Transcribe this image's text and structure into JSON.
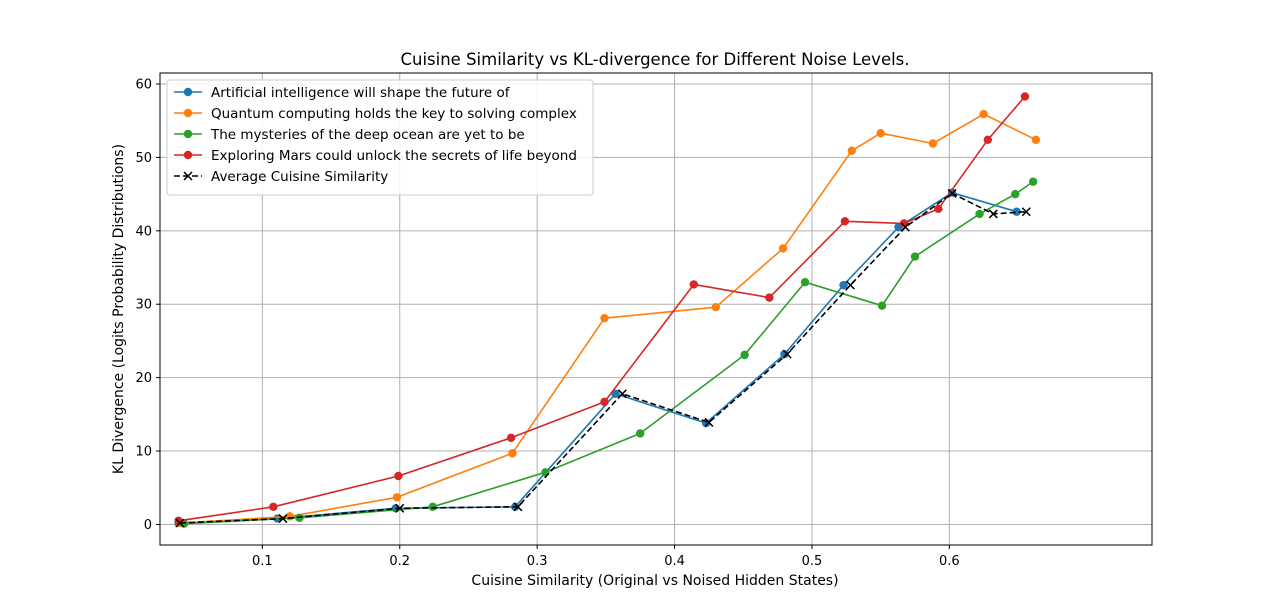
{
  "chart_data": {
    "type": "line",
    "title": "Cuisine Similarity vs KL-divergence for Different Noise Levels.",
    "xlabel": "Cuisine Similarity (Original vs Noised Hidden States)",
    "ylabel": "KL Divergence (Logits Probability Distributions)",
    "xlim": [
      0.0255,
      0.7475
    ],
    "ylim": [
      -2.8,
      61.5
    ],
    "xticks": [
      0.1,
      0.2,
      0.3,
      0.4,
      0.5,
      0.6
    ],
    "xtick_labels": [
      "0.1",
      "0.2",
      "0.3",
      "0.4",
      "0.5",
      "0.6"
    ],
    "yticks": [
      0,
      10,
      20,
      30,
      40,
      50,
      60
    ],
    "ytick_labels": [
      "0",
      "10",
      "20",
      "30",
      "40",
      "50",
      "60"
    ],
    "grid": true,
    "legend_position": "top-left",
    "series": [
      {
        "name": "Artificial intelligence will shape the future of",
        "color": "#1f77b4",
        "marker": "circle",
        "dashed": false,
        "x": [
          0.039,
          0.111,
          0.197,
          0.284,
          0.357,
          0.423,
          0.48,
          0.523,
          0.563,
          0.602,
          0.649
        ],
        "y": [
          0.2,
          0.8,
          2.2,
          2.4,
          17.8,
          13.8,
          23.2,
          32.6,
          40.5,
          45.2,
          42.6
        ]
      },
      {
        "name": "Quantum computing holds the key to solving complex",
        "color": "#ff7f0e",
        "marker": "circle",
        "dashed": false,
        "x": [
          0.04,
          0.12,
          0.198,
          0.282,
          0.349,
          0.43,
          0.479,
          0.529,
          0.55,
          0.588,
          0.625,
          0.663
        ],
        "y": [
          0.2,
          1.1,
          3.7,
          9.7,
          28.1,
          29.6,
          37.6,
          50.9,
          53.3,
          51.9,
          55.9,
          52.4
        ]
      },
      {
        "name": "The mysteries of the deep ocean are yet to be",
        "color": "#2ca02c",
        "marker": "circle",
        "dashed": false,
        "x": [
          0.043,
          0.127,
          0.224,
          0.306,
          0.375,
          0.451,
          0.495,
          0.551,
          0.575,
          0.622,
          0.648,
          0.661
        ],
        "y": [
          0.1,
          0.9,
          2.4,
          7.1,
          12.4,
          23.1,
          33.0,
          29.8,
          36.5,
          42.3,
          45.0,
          46.7
        ]
      },
      {
        "name": "Exploring Mars could unlock the secrets of life beyond",
        "color": "#d62728",
        "marker": "circle",
        "dashed": false,
        "x": [
          0.039,
          0.108,
          0.199,
          0.281,
          0.349,
          0.414,
          0.469,
          0.524,
          0.567,
          0.592,
          0.628,
          0.655
        ],
        "y": [
          0.5,
          2.4,
          6.6,
          11.8,
          16.7,
          32.7,
          30.9,
          41.3,
          41.0,
          43.0,
          52.4,
          58.3
        ]
      },
      {
        "name": "Average Cuisine Similarity",
        "color": "#000000",
        "marker": "x",
        "dashed": true,
        "x": [
          0.04,
          0.115,
          0.2,
          0.286,
          0.362,
          0.425,
          0.482,
          0.528,
          0.568,
          0.602,
          0.632,
          0.656
        ],
        "y": [
          0.2,
          0.8,
          2.2,
          2.4,
          17.8,
          13.9,
          23.2,
          32.6,
          40.5,
          45.1,
          42.3,
          42.6
        ]
      }
    ]
  }
}
